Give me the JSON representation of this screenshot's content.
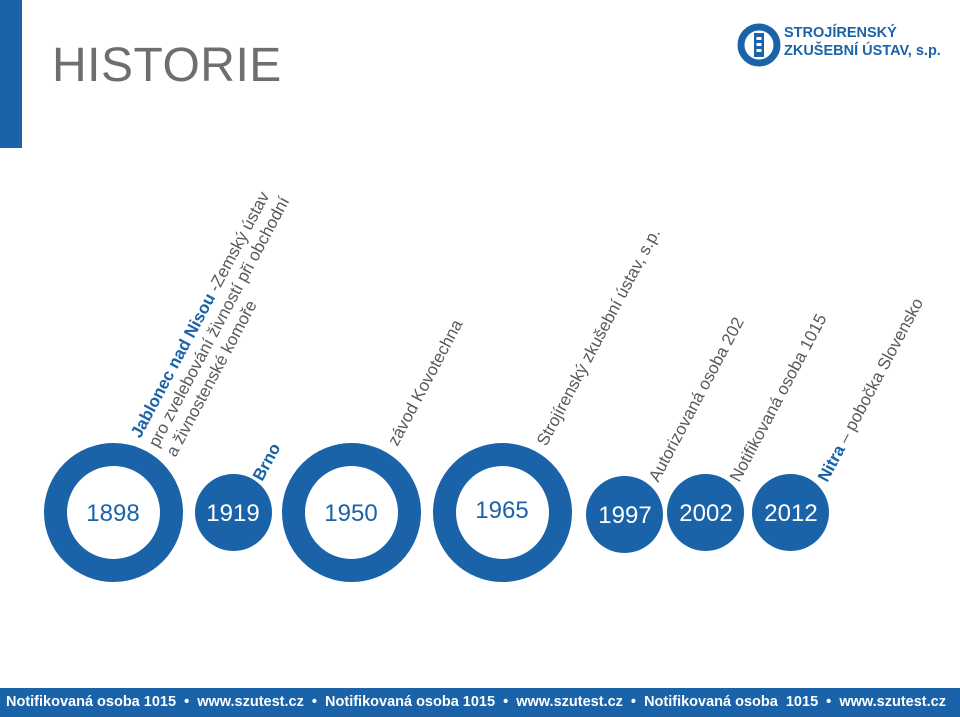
{
  "page": {
    "title": "HISTORIE"
  },
  "logo": {
    "line1": "STROJÍRENSKÝ",
    "line2": "ZKUŠEBNÍ ÚSTAV, s.p.",
    "icon": "szu-logo-icon"
  },
  "colors": {
    "brand_blue": "#1a63a8",
    "title_gray": "#6d6e71"
  },
  "timeline": [
    {
      "year": "1898",
      "place": "Jablonec nad Nisou",
      "desc": " -Zemský ústav",
      "line2": "pro zvelebování živností při obchodní",
      "line3": "a živnostenské komoře"
    },
    {
      "year": "1919",
      "place": "Brno"
    },
    {
      "year": "1950",
      "desc": "závod Kovotechna"
    },
    {
      "year": "1965",
      "desc": "Strojírenský zkušební ústav, s.p."
    },
    {
      "year": "1997",
      "desc": "Autorizovaná osoba 202"
    },
    {
      "year": "2002",
      "desc": "Notifikovaná osoba 1015"
    },
    {
      "year": "2012",
      "place": "Nitra",
      "desc": " – pobočka Slovensko"
    }
  ],
  "footer": {
    "text": "Notifikovaná osoba 1015  •  www.szutest.cz  •  Notifikovaná osoba 1015  •  www.szutest.cz  •  Notifikovaná osoba  1015  •  www.szutest.cz"
  }
}
